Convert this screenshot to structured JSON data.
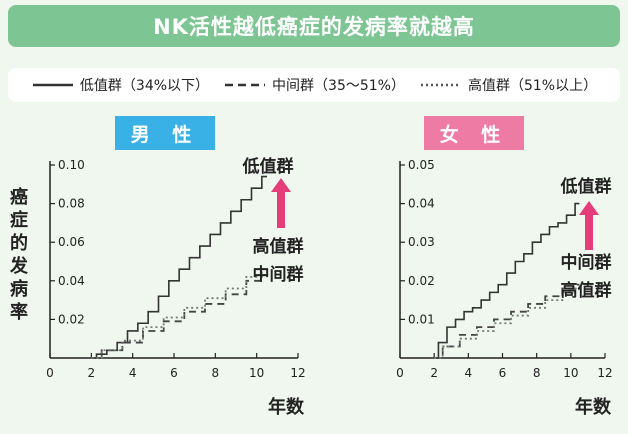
{
  "title": "NK活性越低癌症的发病率就越高",
  "legend": [
    {
      "label": "低值群（34%以下）",
      "style": "solid"
    },
    {
      "label": "中间群（35～51%）",
      "style": "dashed"
    },
    {
      "label": "高值群（51%以上）",
      "style": "dotted"
    }
  ],
  "ylabel": [
    "癌",
    "症",
    "的",
    "发",
    "病",
    "率"
  ],
  "colors": {
    "title_bg": "#7dc593",
    "male": "#3ab1e6",
    "female": "#ee7ba3",
    "arrow": "#e53d7a",
    "line": "#333333",
    "line_light": "#777777"
  },
  "chart_data": [
    {
      "type": "line",
      "panel_label": "男 性",
      "xlabel": "年数",
      "xlim": [
        0,
        12
      ],
      "ylim": [
        0,
        0.1
      ],
      "x_ticks": [
        "0",
        "2",
        "4",
        "6",
        "8",
        "10",
        "12"
      ],
      "y_ticks": [
        "0.02",
        "0.04",
        "0.06",
        "0.08",
        "0.10"
      ],
      "y_tick_values": [
        0.02,
        0.04,
        0.06,
        0.08,
        0.1
      ],
      "annotations": {
        "top": "低值群",
        "mid1": "高值群",
        "mid2": "中间群"
      },
      "series": [
        {
          "name": "低值群",
          "style": "solid",
          "x": [
            2,
            2.5,
            3,
            3.5,
            4,
            4.5,
            5,
            5.5,
            6,
            6.5,
            7,
            7.5,
            8,
            8.5,
            9,
            9.5,
            10,
            10.5
          ],
          "y": [
            0,
            0.002,
            0.004,
            0.008,
            0.014,
            0.018,
            0.024,
            0.032,
            0.04,
            0.046,
            0.052,
            0.058,
            0.064,
            0.07,
            0.076,
            0.082,
            0.088,
            0.094
          ]
        },
        {
          "name": "中间群",
          "style": "dashed",
          "x": [
            2,
            3,
            4,
            5,
            6,
            7,
            8,
            9,
            10,
            10.5
          ],
          "y": [
            0,
            0.004,
            0.008,
            0.014,
            0.019,
            0.024,
            0.028,
            0.033,
            0.04,
            0.043
          ]
        },
        {
          "name": "高值群",
          "style": "dotted",
          "x": [
            2,
            3,
            4,
            5,
            6,
            7,
            8,
            9,
            10,
            10.5
          ],
          "y": [
            0,
            0.004,
            0.009,
            0.016,
            0.021,
            0.026,
            0.031,
            0.036,
            0.042,
            0.046
          ]
        }
      ]
    },
    {
      "type": "line",
      "panel_label": "女 性",
      "xlabel": "年数",
      "xlim": [
        0,
        12
      ],
      "ylim": [
        0,
        0.05
      ],
      "x_ticks": [
        "0",
        "2",
        "4",
        "6",
        "8",
        "10",
        "12"
      ],
      "y_ticks": [
        "0.01",
        "0.02",
        "0.03",
        "0.04",
        "0.05"
      ],
      "y_tick_values": [
        0.01,
        0.02,
        0.03,
        0.04,
        0.05
      ],
      "annotations": {
        "top": "低值群",
        "mid1": "中间群",
        "mid2": "高值群"
      },
      "series": [
        {
          "name": "低值群",
          "style": "solid",
          "x": [
            2,
            2.5,
            3,
            3.5,
            4,
            4.5,
            5,
            5.5,
            6,
            6.5,
            7,
            7.5,
            8,
            8.5,
            9,
            9.5,
            10,
            10.5
          ],
          "y": [
            0,
            0.004,
            0.008,
            0.01,
            0.012,
            0.013,
            0.015,
            0.017,
            0.019,
            0.022,
            0.025,
            0.027,
            0.03,
            0.032,
            0.034,
            0.035,
            0.037,
            0.04
          ]
        },
        {
          "name": "中间群",
          "style": "dashed",
          "x": [
            2,
            3,
            4,
            5,
            6,
            7,
            8,
            9,
            10,
            10.5
          ],
          "y": [
            0,
            0.003,
            0.006,
            0.008,
            0.01,
            0.012,
            0.014,
            0.016,
            0.018,
            0.019
          ]
        },
        {
          "name": "高值群",
          "style": "dotted",
          "x": [
            2,
            3,
            4,
            5,
            6,
            7,
            8,
            9,
            10,
            10.5
          ],
          "y": [
            0,
            0.003,
            0.005,
            0.007,
            0.009,
            0.011,
            0.013,
            0.015,
            0.017,
            0.018
          ]
        }
      ]
    }
  ]
}
